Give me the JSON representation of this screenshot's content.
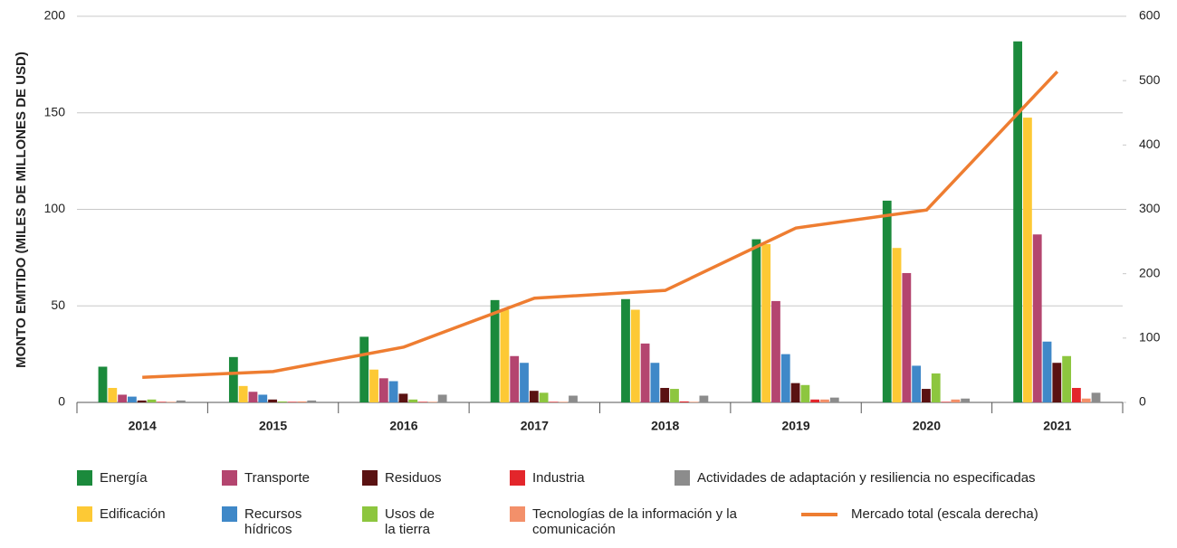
{
  "chart_data": {
    "type": "bar",
    "y_label": "MONTO EMITIDO (MILES DE MILLONES DE USD)",
    "categories": [
      "2014",
      "2015",
      "2016",
      "2017",
      "2018",
      "2019",
      "2020",
      "2021"
    ],
    "ylim": [
      0,
      200
    ],
    "yticks": [
      0,
      50,
      100,
      150,
      200
    ],
    "y2lim": [
      0,
      600
    ],
    "y2ticks": [
      0,
      100,
      200,
      300,
      400,
      500,
      600
    ],
    "grid": true,
    "series": [
      {
        "name": "Energía",
        "color": "#1b8a3c",
        "values": [
          18.5,
          23.5,
          34,
          53,
          53.5,
          84.5,
          104.5,
          187
        ]
      },
      {
        "name": "Edificación",
        "color": "#fdc935",
        "values": [
          7.5,
          8.5,
          17,
          48,
          48,
          82,
          80,
          147.5
        ]
      },
      {
        "name": "Transporte",
        "color": "#b4456f",
        "values": [
          4,
          5.5,
          12.5,
          24,
          30.5,
          52.5,
          67,
          87
        ]
      },
      {
        "name": "Recursos hídricos",
        "color": "#3f88c8",
        "values": [
          3,
          4,
          11,
          20.5,
          20.5,
          25,
          19,
          31.5
        ]
      },
      {
        "name": "Residuos",
        "color": "#5a1212",
        "values": [
          1,
          1.5,
          4.5,
          6,
          7.5,
          10,
          7,
          20.5
        ]
      },
      {
        "name": "Usos de la tierra",
        "color": "#8dc63f",
        "values": [
          1.5,
          0.5,
          1.5,
          5,
          7,
          9,
          15,
          24
        ]
      },
      {
        "name": "Industria",
        "color": "#e3262b",
        "values": [
          0.3,
          0.3,
          0.3,
          0.3,
          0.5,
          1.5,
          0.3,
          7.5
        ]
      },
      {
        "name": "Tecnologías de la información y la comunicación",
        "color": "#f3906a",
        "values": [
          0.3,
          0.5,
          0.3,
          0.3,
          0.3,
          1.5,
          1.5,
          2
        ]
      },
      {
        "name": "Actividades de adaptación y resiliencia no especificadas",
        "color": "#8c8c8c",
        "values": [
          1,
          1,
          4,
          3.5,
          3.5,
          2.5,
          2,
          5
        ]
      },
      {
        "name": "Mercado total (escala derecha)",
        "color": "#ee7d31",
        "type": "line",
        "axis": "y2",
        "values": [
          39,
          48,
          86,
          162,
          174,
          271,
          299,
          514
        ]
      }
    ]
  }
}
